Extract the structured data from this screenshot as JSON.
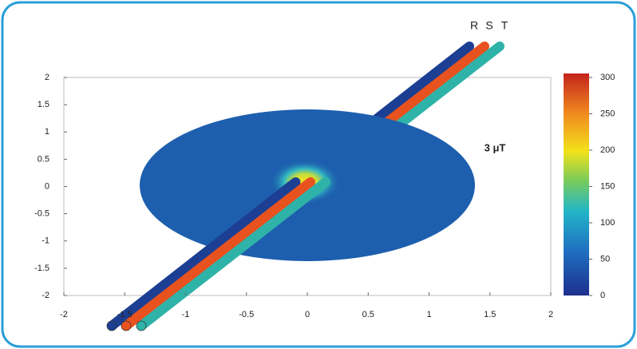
{
  "chart_data": {
    "type": "field",
    "annotation": "3 μT",
    "conductor_labels": [
      "R",
      "S",
      "T"
    ],
    "conductor_colors": [
      "#1c3f93",
      "#e8521e",
      "#2fb3a9"
    ],
    "xlim": [
      -2,
      2
    ],
    "xticks": [
      -2,
      -1.5,
      -1,
      -0.5,
      0,
      0.5,
      1,
      1.5,
      2
    ],
    "ylim": [
      -2,
      2
    ],
    "yticks": [
      -2,
      -1.5,
      -1,
      -0.5,
      0,
      0.5,
      1,
      1.5,
      2
    ],
    "colorbar": {
      "lim": [
        0,
        300
      ],
      "ticks": [
        0,
        50,
        100,
        150,
        200,
        250,
        300
      ]
    }
  }
}
